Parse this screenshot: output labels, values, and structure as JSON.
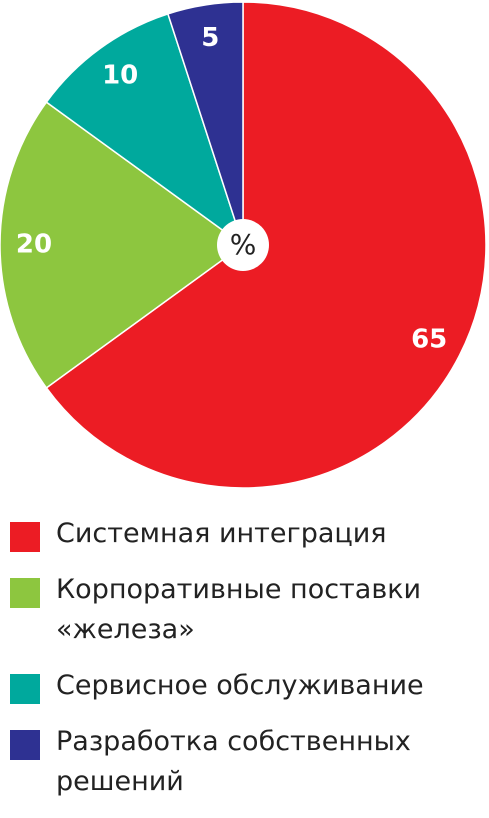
{
  "chart_data": {
    "type": "pie",
    "center_label": "%",
    "categories": [
      "Системная интеграция",
      "Корпоративные поставки «железа»",
      "Сервисное обслуживание",
      "Разработка собственных решений"
    ],
    "values": [
      65,
      20,
      10,
      5
    ],
    "colors": [
      "#ec1c24",
      "#8dc63f",
      "#00a99d",
      "#2e3192"
    ]
  }
}
